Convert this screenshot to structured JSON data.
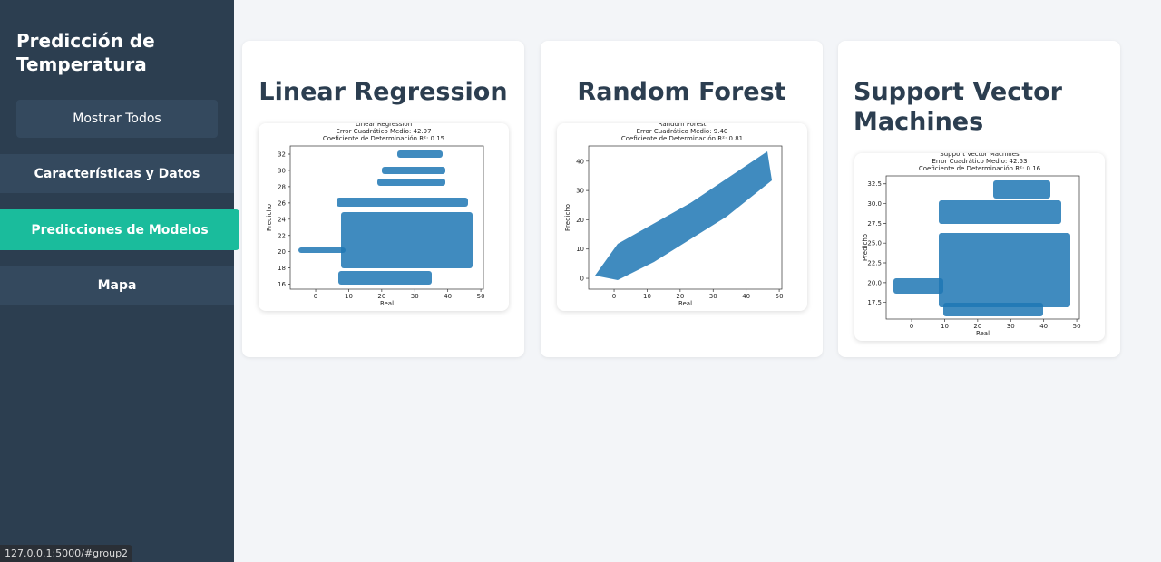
{
  "sidebar": {
    "title": "Predicción de Temperatura",
    "menu": [
      "Mostrar Todos",
      "Características y Datos",
      "Predicciones de Modelos",
      "Mapa"
    ]
  },
  "cards": [
    {
      "title": "Linear Regression",
      "plot": {
        "type": "scatter",
        "title": "Linear Regression",
        "subtitle": [
          "Error Cuadrático Medio: 42.97",
          "Coeficiente de Determinación R²: 0.15"
        ],
        "x_label": "Real",
        "y_label": "Predicho",
        "color": "#1f77b4",
        "xlim": [
          -7.7,
          50.8
        ],
        "ylim": [
          15.4,
          33
        ],
        "xticks": [
          0,
          10,
          20,
          30,
          40,
          50
        ],
        "yticks": [
          16,
          18,
          20,
          22,
          24,
          26,
          28,
          30,
          32
        ]
      }
    },
    {
      "title": "Random Forest",
      "plot": {
        "type": "scatter",
        "title": "Random Forest",
        "subtitle": [
          "Error Cuadrático Medio: 9.40",
          "Coeficiente de Determinación R²: 0.81"
        ],
        "x_label": "Real",
        "y_label": "Predicho",
        "color": "#1f77b4",
        "xlim": [
          -7.7,
          50.8
        ],
        "ylim": [
          -3.7,
          45.2
        ],
        "xticks": [
          0,
          10,
          20,
          30,
          40,
          50
        ],
        "yticks": [
          0,
          10,
          20,
          30,
          40
        ]
      }
    },
    {
      "title": "Support Vector Machines",
      "plot": {
        "type": "scatter",
        "title": "Support Vector Machines",
        "subtitle": [
          "Error Cuadrático Medio: 42.53",
          "Coeficiente de Determinación R²: 0.16"
        ],
        "x_label": "Real",
        "y_label": "Predicho",
        "color": "#1f77b4",
        "xlim": [
          -7.7,
          50.8
        ],
        "ylim": [
          15.4,
          33.5
        ],
        "xticks": [
          0,
          10,
          20,
          30,
          40,
          50
        ],
        "yticks": [
          17.5,
          {
            "value": 20,
            "label": "20.0"
          },
          22.5,
          {
            "value": 25,
            "label": "25.0"
          },
          27.5,
          {
            "value": 30,
            "label": "30.0"
          },
          32.5
        ]
      }
    }
  ],
  "status_bar": "127.0.0.1:5000/#group2"
}
